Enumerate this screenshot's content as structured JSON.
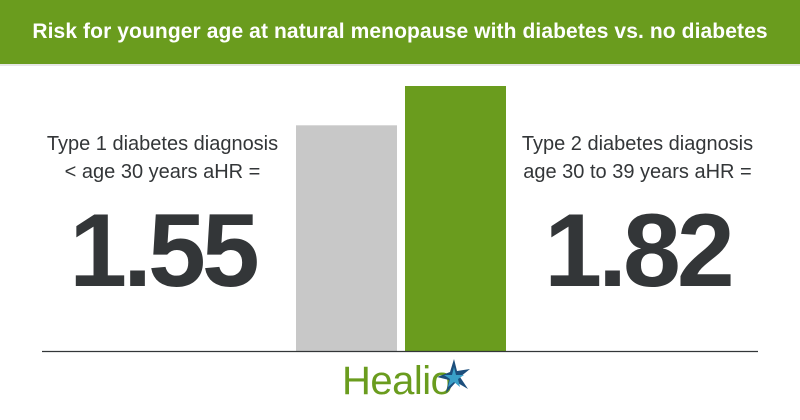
{
  "title": "Risk for younger age at natural menopause with diabetes vs. no diabetes",
  "left_stat": {
    "label_line1": "Type 1 diabetes diagnosis",
    "label_line2": "< age 30 years aHR =",
    "value": "1.55"
  },
  "right_stat": {
    "label_line1": "Type 2 diabetes diagnosis",
    "label_line2": "age 30 to 39 years aHR =",
    "value": "1.82"
  },
  "brand": "Healio",
  "colors": {
    "green": "#6a9c1e",
    "gray_bar": "#c8c8c8",
    "text": "#333638",
    "star_blue": "#1c4e7c",
    "star_teal": "#3aa0c8"
  },
  "chart_data": {
    "type": "bar",
    "categories": [
      "Type 1 diabetes diagnosis < age 30 years",
      "Type 2 diabetes diagnosis age 30 to 39 years"
    ],
    "values": [
      1.55,
      1.82
    ],
    "ylim": [
      0,
      1.82
    ],
    "bar_colors": [
      "#c8c8c8",
      "#6a9c1e"
    ],
    "grid": false,
    "legend": "none"
  }
}
